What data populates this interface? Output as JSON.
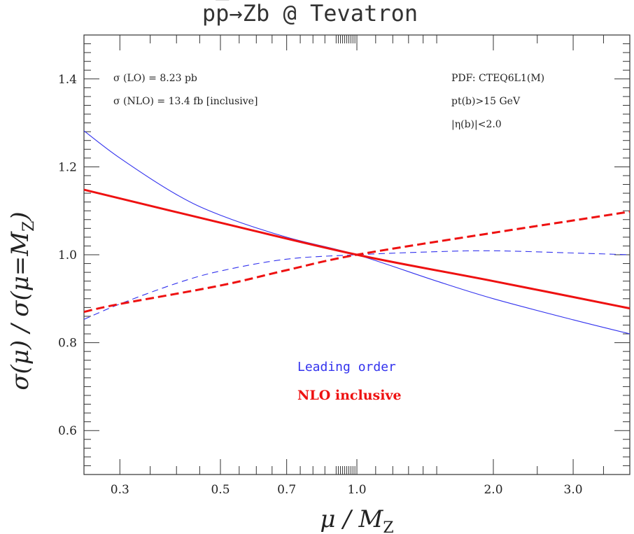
{
  "chart_data": {
    "type": "line",
    "title": {
      "prefix": "p",
      "pbar": "p",
      "arrow": "→",
      "rest": "Zb @ Tevatron"
    },
    "xlabel": {
      "main": "μ  /  M",
      "sub": "Z"
    },
    "ylabel": {
      "main": "σ(μ)  /  σ(μ=M",
      "sub": "Z",
      "close": ")"
    },
    "x_scale": "log",
    "xlim": [
      0.25,
      4.0
    ],
    "ylim": [
      0.5,
      1.5
    ],
    "x_ticks": [
      {
        "value": 0.3,
        "label": "0.3"
      },
      {
        "value": 0.5,
        "label": "0.5"
      },
      {
        "value": 0.7,
        "label": "0.7"
      },
      {
        "value": 1.0,
        "label": "1.0"
      },
      {
        "value": 2.0,
        "label": "2.0"
      },
      {
        "value": 3.0,
        "label": "3.0"
      }
    ],
    "y_ticks": [
      {
        "value": 0.6,
        "label": "0.6"
      },
      {
        "value": 0.8,
        "label": "0.8"
      },
      {
        "value": 1.0,
        "label": "1.0"
      },
      {
        "value": 1.2,
        "label": "1.2"
      },
      {
        "value": 1.4,
        "label": "1.4"
      }
    ],
    "annotations_left": [
      "σ (LO)   = 8.23 pb",
      "σ (NLO) = 13.4 fb [inclusive]"
    ],
    "annotations_right": [
      "PDF: CTEQ6L1(M)",
      "pt(b)>15 GeV",
      "|η(b)|<2.0"
    ],
    "legend": [
      {
        "label": "Leading order",
        "color": "#3333ee"
      },
      {
        "label": "NLO inclusive",
        "color": "#ee1111"
      }
    ],
    "series": [
      {
        "group": "Leading order",
        "style": "solid",
        "color": "#3333ee",
        "x": [
          0.25,
          0.3,
          0.4,
          0.5,
          0.7,
          1.0,
          1.5,
          2.0,
          3.0,
          4.0
        ],
        "y": [
          1.282,
          1.22,
          1.137,
          1.09,
          1.04,
          1.0,
          0.94,
          0.9,
          0.852,
          0.82
        ]
      },
      {
        "group": "Leading order",
        "style": "dashed",
        "color": "#3333ee",
        "x": [
          0.25,
          0.3,
          0.4,
          0.5,
          0.7,
          1.0,
          1.5,
          2.0,
          3.0,
          4.0
        ],
        "y": [
          0.853,
          0.888,
          0.935,
          0.963,
          0.99,
          1.0,
          1.007,
          1.009,
          1.004,
          1.0
        ]
      },
      {
        "group": "NLO inclusive",
        "style": "solid",
        "color": "#ee1111",
        "x": [
          0.25,
          0.5,
          1.0,
          2.0,
          4.0
        ],
        "y": [
          1.148,
          1.073,
          1.0,
          0.94,
          0.878
        ]
      },
      {
        "group": "NLO inclusive",
        "style": "dashed",
        "color": "#ee1111",
        "x": [
          0.25,
          0.3,
          0.5,
          0.7,
          1.0,
          2.0,
          3.0,
          4.0
        ],
        "y": [
          0.87,
          0.888,
          0.93,
          0.965,
          1.0,
          1.05,
          1.078,
          1.098
        ]
      }
    ]
  }
}
